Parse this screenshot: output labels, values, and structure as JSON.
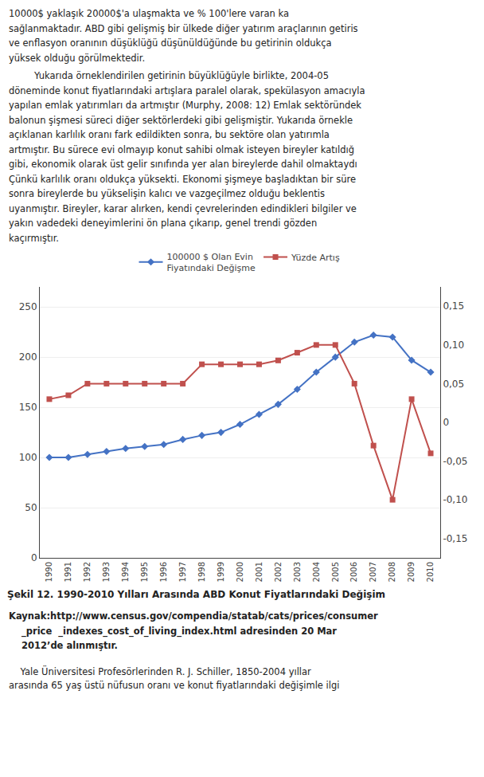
{
  "chart_data": {
    "type": "line",
    "title": "Şekil 12. 1990-2010 Yılları Arasında ABD Konut Fiyatlarındaki Değişim",
    "annotations": [
      "10000$ yaklaşık 20000$'a ulaşmakta ve % 100'lere varan ka",
      "sağlanmaktadır. ABD gibi gelişmiş bir ülkede diğer yatırım araçlarının getiris",
      "ve enflasyon oranının düşüklüğü düşünüldüğünde bu getirinin oldukça",
      "yüksek olduğu görülmektedir.",
      "Yukarıda örneklendirilen getirinin büyüklüğüyle birlikte, 2004-05",
      "döneminde konut fiyatlarındaki artışlara paralel olarak, spekülasyon amacıyla",
      "yapılan emlak yatırımları da artmıştır (Murphy, 2008: 12) Emlak sektöründek",
      "balonun şişmesi süreci diğer sektörlerdeki gibi gelişmiştir. Yukarıda örnekle",
      "açıklanan karlılık oranı fark edildikten sonra, bu sektöre olan yatırımla",
      "artmıştır. Bu sürece evi olmayıp konut sahibi olmak isteyen bireyler katıldığ",
      "gibi, ekonomik olarak üst gelir sınıfında yer alan bireylerde dahil olmaktaydı",
      "Çünkü karlılık oranı oldukça yüksekti. Ekonomi şişmeye başladıktan bir süre",
      "sonra bireylerde bu yükselişin kalıcı ve vazgeçilmez olduğu beklentis",
      "uyanmıştır. Bireyler, karar alırken, kendi çevrelerinden edindikleri bilgiler ve",
      "yakın vadedeki deneyimlerini ön plana çıkarıp, genel trendi gözden",
      "kaçırmıştır.",
      "Kaynak:http://www.census.gov/compendia/statab/cats/prices/consumer",
      "    _price  _indexes_cost_of_living_index.html adresinden 20 Mar",
      "    2012’de alınmıştır.",
      "    Yale Üniversitesi Profesörlerinden R. J. Schiller, 1850-2004 yıllar",
      "arasında 65 yaş üstü nüfusun oranı ve konut fiyatlarındaki değişimle ilgi"
    ],
    "x": [
      1990,
      1991,
      1992,
      1993,
      1994,
      1995,
      1996,
      1997,
      1998,
      1999,
      2000,
      2001,
      2002,
      2003,
      2004,
      2005,
      2006,
      2007,
      2008,
      2009,
      2010
    ],
    "xlim": [
      1989.5,
      2010.5
    ],
    "xticks": [
      1990,
      1991,
      1992,
      1993,
      1994,
      1995,
      1996,
      1997,
      1998,
      1999,
      2000,
      2001,
      2002,
      2003,
      2004,
      2005,
      2006,
      2007,
      2008,
      2009,
      2010
    ],
    "ylim": [
      0,
      270
    ],
    "yticks": [
      0,
      50,
      100,
      150,
      200,
      250
    ],
    "y2lim": [
      -0.175,
      0.175
    ],
    "y2ticks": [
      {
        "value": -0.15,
        "label": "-0,15"
      },
      {
        "value": -0.1,
        "label": "-0,10"
      },
      {
        "value": -0.05,
        "label": "-0,05"
      },
      0,
      {
        "value": 0.05,
        "label": "0,05"
      },
      {
        "value": 0.1,
        "label": "0,10"
      },
      {
        "value": 0.15,
        "label": "0,15"
      }
    ],
    "grid": true,
    "legend": "top",
    "series": [
      {
        "name": "100000 $ Olan Evin\nFiyatındaki Değişme",
        "color": "#4472C4",
        "marker": "diamond",
        "values": [
          100,
          100,
          103,
          106,
          109,
          111,
          113,
          118,
          122,
          125,
          133,
          143,
          153,
          168,
          185,
          200,
          215,
          222,
          220,
          197,
          185
        ]
      },
      {
        "name": "Yüzde Artış",
        "color": "#C0504D",
        "marker": "square",
        "axis": "y2",
        "values": [
          0.03,
          0.035,
          0.05,
          0.05,
          0.05,
          0.05,
          0.05,
          0.05,
          0.075,
          0.075,
          0.075,
          0.075,
          0.08,
          0.09,
          0.1,
          0.1,
          0.05,
          -0.03,
          -0.1,
          0.03,
          -0.04
        ]
      }
    ]
  }
}
